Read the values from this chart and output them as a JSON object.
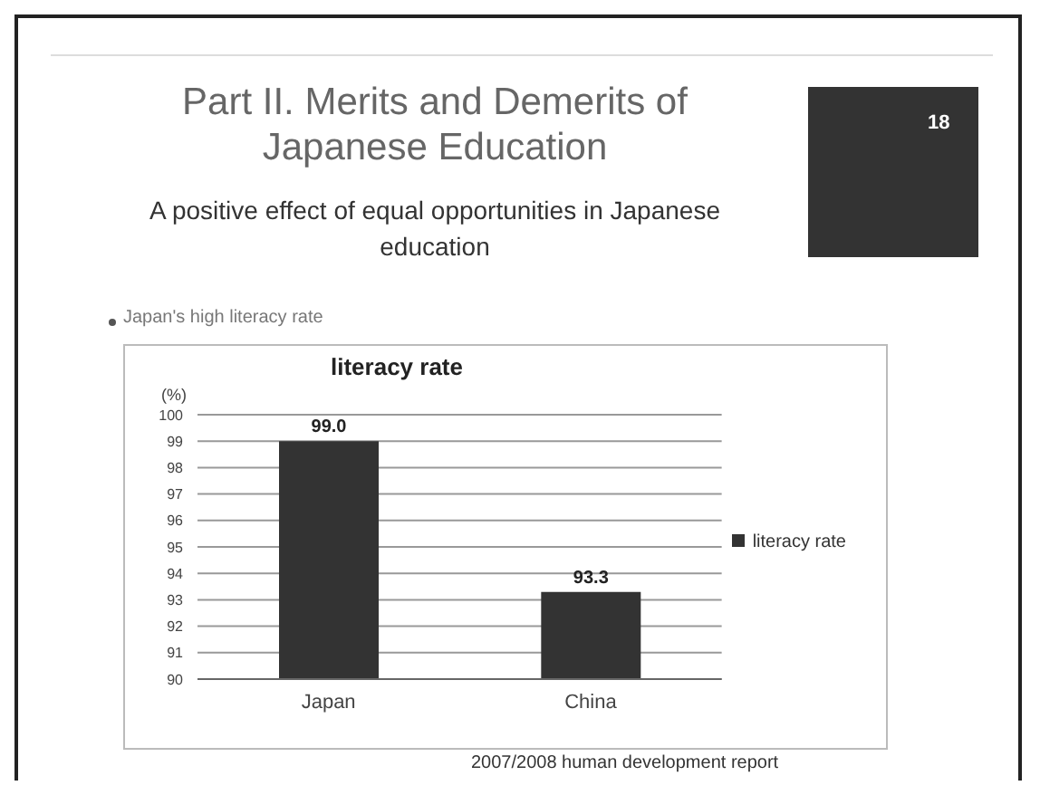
{
  "chart_data": {
    "type": "bar",
    "title": "Part II. Merits and Demerits of Japanese Education",
    "subtitle": "A positive effect of equal opportunities in Japanese education",
    "ylabel": "(%)",
    "annotations": [
      "18",
      "Japan's high literacy rate",
      "literacy rate",
      "2007/2008 human development report"
    ],
    "categories": [
      "Japan",
      "China"
    ],
    "series": [
      {
        "name": "literacy rate",
        "color": "#333333",
        "values": [
          99.0,
          93.3
        ],
        "value_labels": [
          "99.0",
          "93.3"
        ]
      }
    ],
    "ylim": [
      90,
      100
    ],
    "yticks": [
      90,
      91,
      92,
      93,
      94,
      95,
      96,
      97,
      98,
      99,
      100
    ],
    "grid": "y",
    "legend": "right"
  }
}
